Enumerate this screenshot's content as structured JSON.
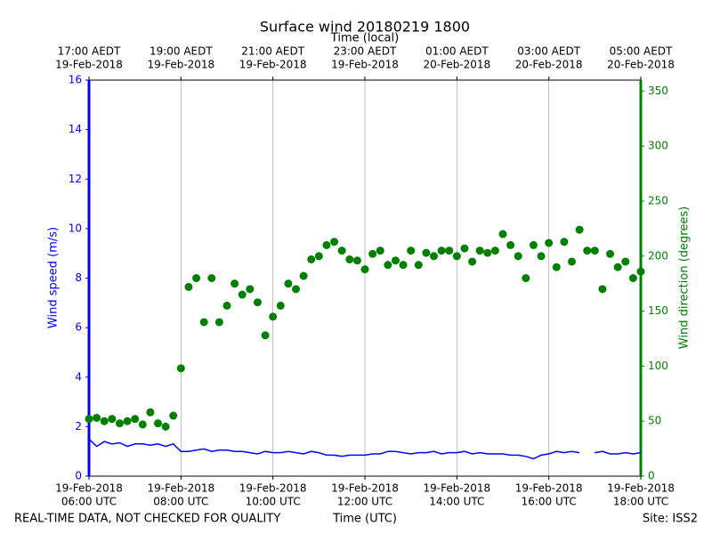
{
  "chart_data": {
    "type": "line",
    "title": "Surface wind 20180219 1800",
    "x2_label": "Time (local)",
    "x_label": "Time (UTC)",
    "y_label": "Wind speed (m/s)",
    "y2_label": "Wind direction (degrees)",
    "footer_left": "REAL-TIME DATA, NOT CHECKED FOR QUALITY",
    "footer_right": "Site: ISS2",
    "grid": true,
    "x": [
      "2018-02-19T06:00",
      "2018-02-19T06:10",
      "2018-02-19T06:20",
      "2018-02-19T06:30",
      "2018-02-19T06:40",
      "2018-02-19T06:50",
      "2018-02-19T07:00",
      "2018-02-19T07:10",
      "2018-02-19T07:20",
      "2018-02-19T07:30",
      "2018-02-19T07:40",
      "2018-02-19T07:50",
      "2018-02-19T08:00",
      "2018-02-19T08:10",
      "2018-02-19T08:20",
      "2018-02-19T08:30",
      "2018-02-19T08:40",
      "2018-02-19T08:50",
      "2018-02-19T09:00",
      "2018-02-19T09:10",
      "2018-02-19T09:20",
      "2018-02-19T09:30",
      "2018-02-19T09:40",
      "2018-02-19T09:50",
      "2018-02-19T10:00",
      "2018-02-19T10:10",
      "2018-02-19T10:20",
      "2018-02-19T10:30",
      "2018-02-19T10:40",
      "2018-02-19T10:50",
      "2018-02-19T11:00",
      "2018-02-19T11:10",
      "2018-02-19T11:20",
      "2018-02-19T11:30",
      "2018-02-19T11:40",
      "2018-02-19T11:50",
      "2018-02-19T12:00",
      "2018-02-19T12:10",
      "2018-02-19T12:20",
      "2018-02-19T12:30",
      "2018-02-19T12:40",
      "2018-02-19T12:50",
      "2018-02-19T13:00",
      "2018-02-19T13:10",
      "2018-02-19T13:20",
      "2018-02-19T13:30",
      "2018-02-19T13:40",
      "2018-02-19T13:50",
      "2018-02-19T14:00",
      "2018-02-19T14:10",
      "2018-02-19T14:20",
      "2018-02-19T14:30",
      "2018-02-19T14:40",
      "2018-02-19T14:50",
      "2018-02-19T15:00",
      "2018-02-19T15:10",
      "2018-02-19T15:20",
      "2018-02-19T15:30",
      "2018-02-19T15:40",
      "2018-02-19T15:50",
      "2018-02-19T16:00",
      "2018-02-19T16:10",
      "2018-02-19T16:20",
      "2018-02-19T16:30",
      "2018-02-19T16:40",
      "2018-02-19T16:50",
      "2018-02-19T17:00",
      "2018-02-19T17:10",
      "2018-02-19T17:20",
      "2018-02-19T17:30",
      "2018-02-19T17:40",
      "2018-02-19T17:50",
      "2018-02-19T18:00"
    ],
    "series": [
      {
        "color": "#0000ff",
        "values": [
          1.5,
          1.2,
          1.4,
          1.3,
          1.35,
          1.2,
          1.3,
          1.3,
          1.25,
          1.3,
          1.2,
          1.3,
          1.0,
          1.0,
          1.05,
          1.1,
          1.0,
          1.05,
          1.05,
          1.0,
          1.0,
          0.95,
          0.9,
          1.0,
          0.95,
          0.95,
          1.0,
          0.95,
          0.9,
          1.0,
          0.95,
          0.85,
          0.85,
          0.8,
          0.85,
          0.85,
          0.85,
          0.9,
          0.9,
          1.0,
          1.0,
          0.95,
          0.9,
          0.95,
          0.95,
          1.0,
          0.9,
          0.95,
          0.95,
          1.0,
          0.9,
          0.95,
          0.9,
          0.9,
          0.9,
          0.85,
          0.85,
          0.8,
          0.7,
          0.85,
          0.9,
          1.0,
          0.95,
          1.0,
          0.95,
          null,
          0.95,
          1.0,
          0.9,
          0.9,
          0.95,
          0.9,
          0.95
        ]
      },
      {
        "type": "scatter",
        "axis": "y2",
        "color": "#008000",
        "values": [
          52,
          53,
          50,
          52,
          48,
          50,
          52,
          47,
          58,
          48,
          45,
          55,
          98,
          172,
          180,
          140,
          180,
          140,
          155,
          175,
          165,
          170,
          158,
          128,
          145,
          155,
          175,
          170,
          182,
          197,
          200,
          210,
          213,
          205,
          197,
          196,
          188,
          202,
          205,
          192,
          196,
          192,
          205,
          192,
          203,
          200,
          205,
          205,
          200,
          207,
          195,
          205,
          203,
          205,
          220,
          210,
          200,
          180,
          210,
          200,
          212,
          190,
          213,
          195,
          224,
          205,
          205,
          170,
          202,
          190,
          195,
          180,
          186
        ]
      }
    ],
    "xlim": [
      "2018-02-19T06:00",
      "2018-02-19T18:00"
    ],
    "xticks": [
      {
        "value": "2018-02-19T06:00",
        "label": [
          "19-Feb-2018",
          "06:00 UTC"
        ]
      },
      {
        "value": "2018-02-19T08:00",
        "label": [
          "19-Feb-2018",
          "08:00 UTC"
        ]
      },
      {
        "value": "2018-02-19T10:00",
        "label": [
          "19-Feb-2018",
          "10:00 UTC"
        ]
      },
      {
        "value": "2018-02-19T12:00",
        "label": [
          "19-Feb-2018",
          "12:00 UTC"
        ]
      },
      {
        "value": "2018-02-19T14:00",
        "label": [
          "19-Feb-2018",
          "14:00 UTC"
        ]
      },
      {
        "value": "2018-02-19T16:00",
        "label": [
          "19-Feb-2018",
          "16:00 UTC"
        ]
      },
      {
        "value": "2018-02-19T18:00",
        "label": [
          "19-Feb-2018",
          "18:00 UTC"
        ]
      }
    ],
    "x2ticks": [
      {
        "value": "2018-02-19T06:00",
        "label": [
          "17:00 AEDT",
          "19-Feb-2018"
        ]
      },
      {
        "value": "2018-02-19T08:00",
        "label": [
          "19:00 AEDT",
          "19-Feb-2018"
        ]
      },
      {
        "value": "2018-02-19T10:00",
        "label": [
          "21:00 AEDT",
          "19-Feb-2018"
        ]
      },
      {
        "value": "2018-02-19T12:00",
        "label": [
          "23:00 AEDT",
          "19-Feb-2018"
        ]
      },
      {
        "value": "2018-02-19T14:00",
        "label": [
          "01:00 AEDT",
          "20-Feb-2018"
        ]
      },
      {
        "value": "2018-02-19T16:00",
        "label": [
          "03:00 AEDT",
          "20-Feb-2018"
        ]
      },
      {
        "value": "2018-02-19T18:00",
        "label": [
          "05:00 AEDT",
          "20-Feb-2018"
        ]
      }
    ],
    "ylim": [
      0,
      16
    ],
    "yticks": [
      0,
      2,
      4,
      6,
      8,
      10,
      12,
      14,
      16
    ],
    "y2lim": [
      0,
      360
    ],
    "y2ticks": [
      0,
      50,
      100,
      150,
      200,
      250,
      300,
      350
    ]
  }
}
